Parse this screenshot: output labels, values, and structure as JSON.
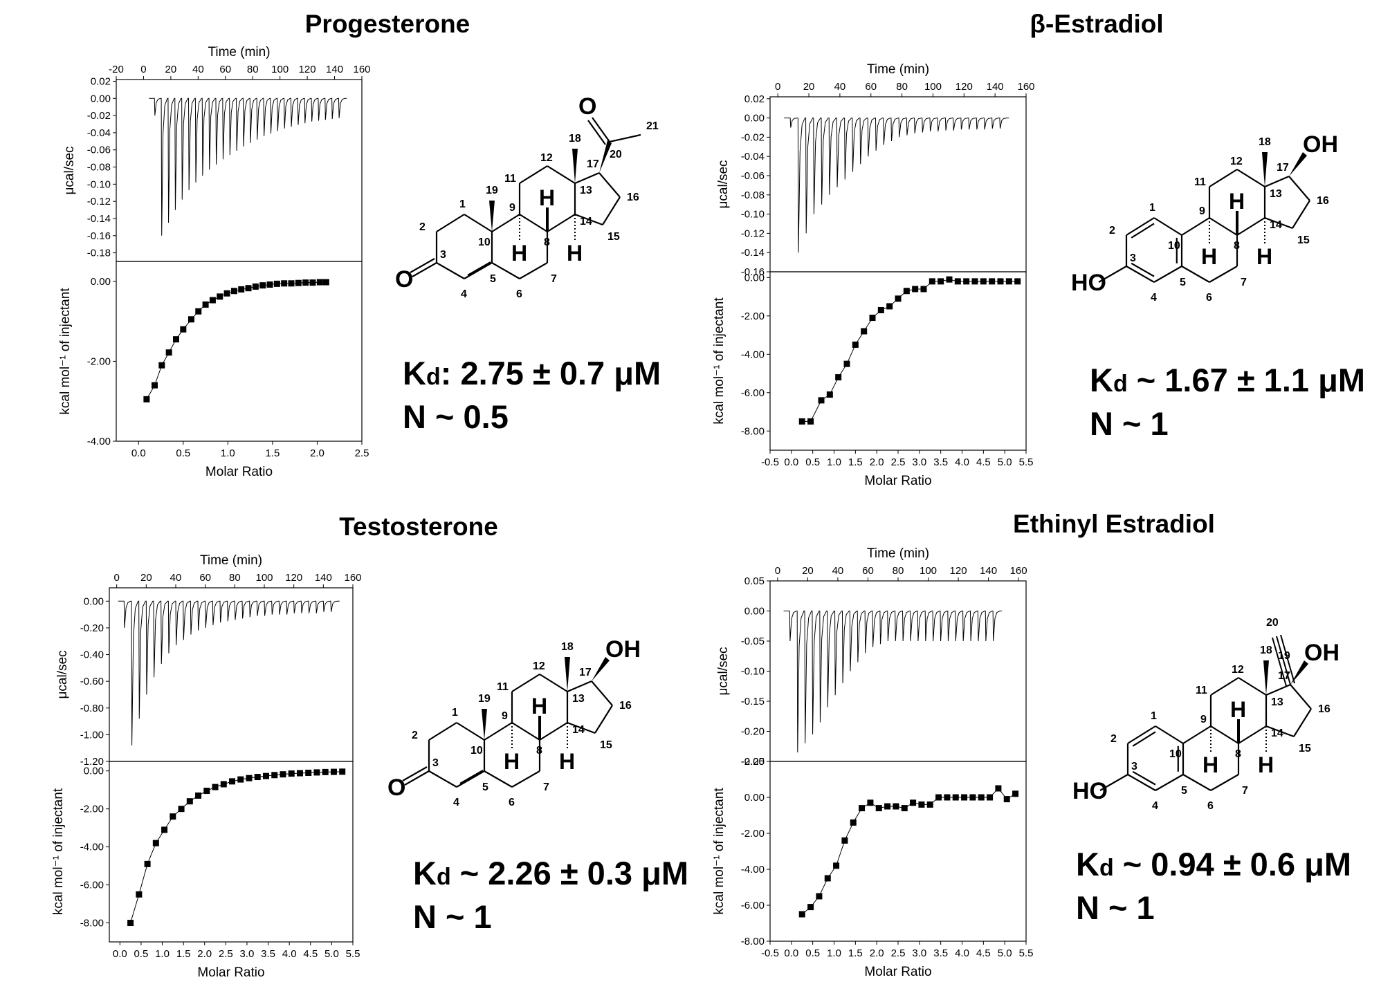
{
  "panels": [
    {
      "title": "Progesterone",
      "kd_label": "K",
      "kd_sub": "d",
      "kd_value": ": 2.75 ± 0.7 μM",
      "n_text": "N ~ 0.5",
      "top_xlabel": "Time (min)",
      "top_ylabel": "μcal/sec",
      "bottom_xlabel": "Molar Ratio",
      "bottom_ylabel": "kcal mol⁻¹ of injectant",
      "top_xticks": [
        "-20",
        "0",
        "20",
        "40",
        "60",
        "80",
        "100",
        "120",
        "140",
        "160"
      ],
      "top_yticks": [
        "0.02",
        "0.00",
        "-0.02",
        "-0.04",
        "-0.06",
        "-0.08",
        "-0.10",
        "-0.12",
        "-0.14",
        "-0.16",
        "-0.18"
      ],
      "bottom_xticks": [
        "0.0",
        "0.5",
        "1.0",
        "1.5",
        "2.0",
        "2.5"
      ],
      "bottom_yticks": [
        "0.00",
        "-2.00",
        "-4.00"
      ],
      "structure": "progesterone"
    },
    {
      "title": "β-Estradiol",
      "kd_label": "K",
      "kd_sub": "d",
      "kd_value": " ~ 1.67 ± 1.1  μM",
      "n_text": "N ~ 1",
      "top_xlabel": "Time (min)",
      "top_ylabel": "μcal/sec",
      "bottom_xlabel": "Molar Ratio",
      "bottom_ylabel": "kcal mol⁻¹ of injectant",
      "top_xticks": [
        "0",
        "20",
        "40",
        "60",
        "80",
        "100",
        "120",
        "140",
        "160"
      ],
      "top_yticks": [
        "0.02",
        "0.00",
        "-0.02",
        "-0.04",
        "-0.06",
        "-0.08",
        "-0.10",
        "-0.12",
        "-0.14",
        "-0.16"
      ],
      "bottom_xticks": [
        "-0.5",
        "0.0",
        "0.5",
        "1.0",
        "1.5",
        "2.0",
        "2.5",
        "3.0",
        "3.5",
        "4.0",
        "4.5",
        "5.0",
        "5.5"
      ],
      "bottom_yticks": [
        "0.00",
        "-2.00",
        "-4.00",
        "-6.00",
        "-8.00"
      ],
      "structure": "estradiol"
    },
    {
      "title": "Testosterone",
      "kd_label": "K",
      "kd_sub": "d",
      "kd_value": " ~ 2.26 ± 0.3 μM",
      "n_text": "N ~ 1",
      "top_xlabel": "Time (min)",
      "top_ylabel": "μcal/sec",
      "bottom_xlabel": "Molar Ratio",
      "bottom_ylabel": "kcal mol⁻¹ of injectant",
      "top_xticks": [
        "0",
        "20",
        "40",
        "60",
        "80",
        "100",
        "120",
        "140",
        "160"
      ],
      "top_yticks": [
        "0.00",
        "-0.20",
        "-0.40",
        "-0.60",
        "-0.80",
        "-1.00",
        "-1.20"
      ],
      "bottom_xticks": [
        "0.0",
        "0.5",
        "1.0",
        "1.5",
        "2.0",
        "2.5",
        "3.0",
        "3.5",
        "4.0",
        "4.5",
        "5.0",
        "5.5"
      ],
      "bottom_yticks": [
        "0.00",
        "-2.00",
        "-4.00",
        "-6.00",
        "-8.00"
      ],
      "structure": "testosterone"
    },
    {
      "title": "Ethinyl Estradiol",
      "kd_label": "K",
      "kd_sub": "d",
      "kd_value": " ~ 0.94 ± 0.6 μM",
      "n_text": "N ~ 1",
      "top_xlabel": "Time (min)",
      "top_ylabel": "μcal/sec",
      "bottom_xlabel": "Molar Ratio",
      "bottom_ylabel": "kcal mol⁻¹ of injectant",
      "top_xticks": [
        "0",
        "20",
        "40",
        "60",
        "80",
        "100",
        "120",
        "140",
        "160"
      ],
      "top_yticks": [
        "0.05",
        "0.00",
        "-0.05",
        "-0.10",
        "-0.15",
        "-0.20",
        "-0.25"
      ],
      "bottom_xticks": [
        "-0.5",
        "0.0",
        "0.5",
        "1.0",
        "1.5",
        "2.0",
        "2.5",
        "3.0",
        "3.5",
        "4.0",
        "4.5",
        "5.0",
        "5.5"
      ],
      "bottom_yticks": [
        "2.00",
        "0.00",
        "-2.00",
        "-4.00",
        "-6.00",
        "-8.00"
      ],
      "structure": "ethinyl"
    }
  ],
  "chart_data": [
    {
      "type": "scatter",
      "title": "Progesterone",
      "description_panel": "ITC titration",
      "raw": {
        "xlabel": "Time (min)",
        "ylabel": "μcal/sec",
        "xlim": [
          -20,
          160
        ],
        "ylim": [
          -0.19,
          0.02
        ],
        "injection_times": [
          8,
          13,
          18,
          23,
          28,
          33,
          38,
          43,
          48,
          53,
          58,
          63,
          68,
          73,
          78,
          83,
          88,
          93,
          98,
          103,
          108,
          113,
          118,
          123,
          128,
          133,
          138,
          143
        ],
        "peak_values": [
          -0.02,
          -0.16,
          -0.145,
          -0.13,
          -0.118,
          -0.107,
          -0.098,
          -0.09,
          -0.083,
          -0.077,
          -0.071,
          -0.066,
          -0.061,
          -0.056,
          -0.052,
          -0.048,
          -0.044,
          -0.041,
          -0.038,
          -0.035,
          -0.033,
          -0.031,
          -0.029,
          -0.027,
          -0.026,
          -0.025,
          -0.024,
          -0.023
        ]
      },
      "integrated": {
        "xlabel": "Molar Ratio",
        "ylabel": "kcal mol⁻¹ of injectant",
        "xlim": [
          -0.25,
          2.5
        ],
        "ylim": [
          -4,
          0.5
        ],
        "x": [
          0.09,
          0.18,
          0.26,
          0.34,
          0.42,
          0.5,
          0.59,
          0.67,
          0.75,
          0.83,
          0.91,
          0.99,
          1.07,
          1.15,
          1.23,
          1.31,
          1.39,
          1.47,
          1.55,
          1.63,
          1.71,
          1.79,
          1.87,
          1.95,
          2.03,
          2.1
        ],
        "y": [
          -2.95,
          -2.6,
          -2.1,
          -1.78,
          -1.45,
          -1.2,
          -0.95,
          -0.75,
          -0.58,
          -0.47,
          -0.38,
          -0.3,
          -0.24,
          -0.2,
          -0.17,
          -0.13,
          -0.1,
          -0.08,
          -0.06,
          -0.05,
          -0.05,
          -0.04,
          -0.03,
          -0.03,
          -0.02,
          -0.02
        ]
      }
    },
    {
      "type": "scatter",
      "title": "β-Estradiol",
      "raw": {
        "xlabel": "Time (min)",
        "ylabel": "μcal/sec",
        "xlim": [
          -5,
          160
        ],
        "ylim": [
          -0.16,
          0.02
        ],
        "injection_times": [
          8,
          13,
          18,
          23,
          28,
          33,
          38,
          43,
          48,
          53,
          58,
          63,
          68,
          73,
          78,
          83,
          88,
          93,
          98,
          103,
          108,
          113,
          118,
          123,
          128,
          133,
          138,
          143
        ],
        "peak_values": [
          -0.01,
          -0.14,
          -0.12,
          -0.1,
          -0.09,
          -0.08,
          -0.072,
          -0.064,
          -0.056,
          -0.048,
          -0.04,
          -0.034,
          -0.028,
          -0.024,
          -0.02,
          -0.018,
          -0.016,
          -0.015,
          -0.014,
          -0.014,
          -0.013,
          -0.013,
          -0.012,
          -0.012,
          -0.012,
          -0.012,
          -0.011,
          -0.011
        ]
      },
      "integrated": {
        "xlabel": "Molar Ratio",
        "ylabel": "kcal mol⁻¹ of injectant",
        "xlim": [
          -0.5,
          5.5
        ],
        "ylim": [
          -9,
          0.3
        ],
        "x": [
          0.25,
          0.45,
          0.7,
          0.9,
          1.1,
          1.3,
          1.5,
          1.7,
          1.9,
          2.1,
          2.3,
          2.5,
          2.7,
          2.9,
          3.1,
          3.3,
          3.5,
          3.7,
          3.9,
          4.1,
          4.3,
          4.5,
          4.7,
          4.9,
          5.1,
          5.3
        ],
        "y": [
          -7.5,
          -7.5,
          -6.4,
          -6.1,
          -5.2,
          -4.5,
          -3.5,
          -2.8,
          -2.1,
          -1.7,
          -1.5,
          -1.1,
          -0.7,
          -0.6,
          -0.6,
          -0.2,
          -0.2,
          -0.1,
          -0.2,
          -0.2,
          -0.2,
          -0.2,
          -0.2,
          -0.2,
          -0.2,
          -0.2
        ]
      }
    },
    {
      "type": "scatter",
      "title": "Testosterone",
      "raw": {
        "xlabel": "Time (min)",
        "ylabel": "μcal/sec",
        "xlim": [
          -5,
          160
        ],
        "ylim": [
          -1.2,
          0.1
        ],
        "injection_times": [
          5,
          10,
          15,
          20,
          25,
          30,
          35,
          40,
          45,
          50,
          55,
          60,
          65,
          70,
          75,
          80,
          85,
          90,
          95,
          100,
          105,
          110,
          115,
          120,
          125,
          130,
          135,
          140,
          145
        ],
        "peak_values": [
          -0.2,
          -1.08,
          -0.88,
          -0.7,
          -0.57,
          -0.47,
          -0.39,
          -0.33,
          -0.29,
          -0.25,
          -0.22,
          -0.2,
          -0.18,
          -0.16,
          -0.15,
          -0.14,
          -0.13,
          -0.12,
          -0.11,
          -0.11,
          -0.1,
          -0.1,
          -0.1,
          -0.09,
          -0.09,
          -0.09,
          -0.09,
          -0.08,
          -0.08
        ]
      },
      "integrated": {
        "xlabel": "Molar Ratio",
        "ylabel": "kcal mol⁻¹ of injectant",
        "xlim": [
          -0.25,
          5.5
        ],
        "ylim": [
          -9,
          0.5
        ],
        "x": [
          0.25,
          0.45,
          0.65,
          0.85,
          1.05,
          1.25,
          1.45,
          1.65,
          1.85,
          2.05,
          2.25,
          2.45,
          2.65,
          2.85,
          3.05,
          3.25,
          3.45,
          3.65,
          3.85,
          4.05,
          4.25,
          4.45,
          4.65,
          4.85,
          5.05,
          5.25
        ],
        "y": [
          -8.0,
          -6.5,
          -4.9,
          -3.8,
          -3.1,
          -2.4,
          -2.0,
          -1.6,
          -1.3,
          -1.05,
          -0.85,
          -0.7,
          -0.55,
          -0.45,
          -0.38,
          -0.32,
          -0.27,
          -0.22,
          -0.18,
          -0.14,
          -0.12,
          -0.1,
          -0.08,
          -0.06,
          -0.05,
          -0.04
        ]
      }
    },
    {
      "type": "scatter",
      "title": "Ethinyl Estradiol",
      "raw": {
        "xlabel": "Time (min)",
        "ylabel": "μcal/sec",
        "xlim": [
          -5,
          165
        ],
        "ylim": [
          -0.25,
          0.05
        ],
        "injection_times": [
          8,
          13,
          18,
          23,
          28,
          33,
          38,
          43,
          48,
          53,
          58,
          63,
          68,
          73,
          78,
          83,
          88,
          93,
          98,
          103,
          108,
          113,
          118,
          123,
          128,
          133,
          138,
          143
        ],
        "peak_values": [
          -0.05,
          -0.235,
          -0.22,
          -0.205,
          -0.185,
          -0.16,
          -0.14,
          -0.12,
          -0.1,
          -0.085,
          -0.07,
          -0.06,
          -0.055,
          -0.05,
          -0.05,
          -0.05,
          -0.05,
          -0.05,
          -0.05,
          -0.05,
          -0.05,
          -0.05,
          -0.05,
          -0.05,
          -0.05,
          -0.05,
          -0.05,
          -0.05
        ]
      },
      "integrated": {
        "xlabel": "Molar Ratio",
        "ylabel": "kcal mol⁻¹ of injectant",
        "xlim": [
          -0.5,
          5.5
        ],
        "ylim": [
          -8,
          2
        ],
        "x": [
          0.25,
          0.45,
          0.65,
          0.85,
          1.05,
          1.25,
          1.45,
          1.65,
          1.85,
          2.05,
          2.25,
          2.45,
          2.65,
          2.85,
          3.05,
          3.25,
          3.45,
          3.65,
          3.85,
          4.05,
          4.25,
          4.45,
          4.65,
          4.85,
          5.05,
          5.25
        ],
        "y": [
          -6.5,
          -6.1,
          -5.5,
          -4.5,
          -3.8,
          -2.4,
          -1.4,
          -0.6,
          -0.3,
          -0.6,
          -0.5,
          -0.5,
          -0.6,
          -0.3,
          -0.4,
          -0.4,
          0.0,
          0.0,
          0.0,
          0.0,
          0.0,
          0.0,
          0.0,
          0.5,
          -0.1,
          0.2
        ]
      }
    }
  ]
}
